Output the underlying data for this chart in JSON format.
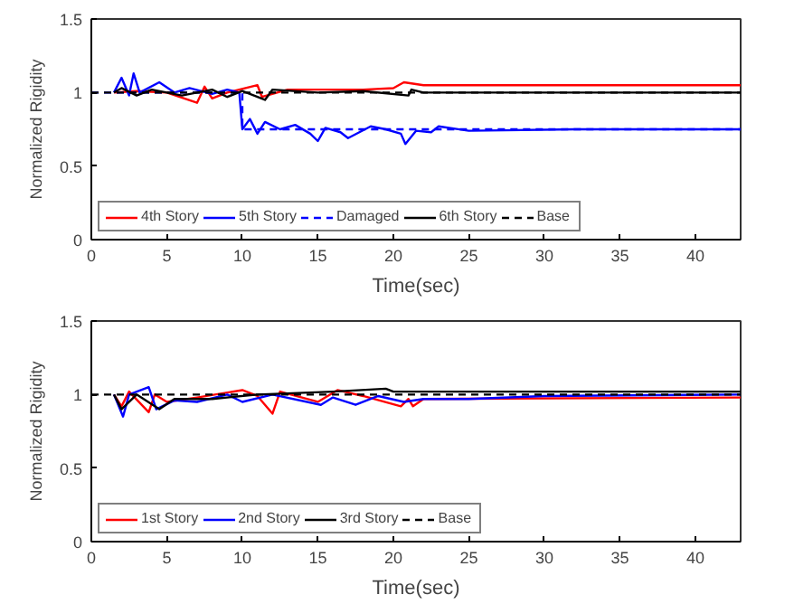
{
  "chart_data": [
    {
      "type": "line",
      "xlabel": "Time(sec)",
      "ylabel": "Normalized Rigidity",
      "xlim": [
        0,
        43
      ],
      "ylim": [
        0,
        1.5
      ],
      "xticks": [
        0,
        5,
        10,
        15,
        20,
        25,
        30,
        35,
        40
      ],
      "yticks": [
        0,
        0.5,
        1,
        1.5
      ],
      "grid": false,
      "legend": "bottom left",
      "series": [
        {
          "name": "4th Story",
          "color": "#ff0000",
          "line_style": "solid",
          "x": [
            1.5,
            3,
            5,
            7,
            7.5,
            8,
            9,
            11,
            11.3,
            13,
            18,
            20,
            20.7,
            22,
            43
          ],
          "values": [
            1,
            1.01,
            1.0,
            0.93,
            1.04,
            0.96,
            1.0,
            1.05,
            0.97,
            1.02,
            1.02,
            1.03,
            1.07,
            1.05,
            1.05
          ]
        },
        {
          "name": "5th Story",
          "color": "#0000ff",
          "line_style": "solid",
          "x": [
            1.5,
            2,
            2.5,
            2.8,
            3.2,
            4.5,
            5.5,
            6.5,
            8,
            9,
            9.8,
            10,
            10.5,
            11,
            11.5,
            12.5,
            13.5,
            14.5,
            15,
            15.5,
            16.5,
            17,
            18.5,
            19.5,
            20.5,
            20.8,
            21.5,
            22.5,
            23,
            25,
            32,
            43
          ],
          "values": [
            1,
            1.1,
            0.98,
            1.13,
            1.0,
            1.07,
            1.0,
            1.03,
            0.99,
            1.02,
            1.0,
            0.75,
            0.82,
            0.72,
            0.8,
            0.75,
            0.78,
            0.72,
            0.67,
            0.76,
            0.73,
            0.69,
            0.77,
            0.75,
            0.72,
            0.65,
            0.74,
            0.73,
            0.77,
            0.74,
            0.75,
            0.75
          ]
        },
        {
          "name": "Damaged",
          "color": "#0000ff",
          "line_style": "dashed",
          "x": [
            0,
            10,
            10,
            43
          ],
          "values": [
            1,
            1,
            0.75,
            0.75
          ]
        },
        {
          "name": "6th Story",
          "color": "#000000",
          "line_style": "solid",
          "x": [
            1.5,
            2,
            3,
            4,
            6,
            8,
            9,
            10,
            11.5,
            12,
            15,
            18,
            21,
            21.2,
            22,
            43
          ],
          "values": [
            1,
            1.03,
            0.98,
            1.02,
            0.98,
            1.02,
            0.97,
            1.01,
            0.95,
            1.02,
            1.0,
            1.01,
            0.98,
            1.02,
            1.0,
            1.0
          ]
        },
        {
          "name": "Base",
          "color": "#000000",
          "line_style": "dashed",
          "x": [
            0,
            43
          ],
          "values": [
            1,
            1
          ]
        }
      ]
    },
    {
      "type": "line",
      "xlabel": "Time(sec)",
      "ylabel": "Normalized Rigidity",
      "xlim": [
        0,
        43
      ],
      "ylim": [
        0,
        1.5
      ],
      "xticks": [
        0,
        5,
        10,
        15,
        20,
        25,
        30,
        35,
        40
      ],
      "yticks": [
        0,
        0.5,
        1,
        1.5
      ],
      "grid": false,
      "legend": "bottom left",
      "series": [
        {
          "name": "1st Story",
          "color": "#ff0000",
          "line_style": "solid",
          "x": [
            1.5,
            2,
            2.5,
            3.8,
            4.2,
            5,
            7,
            10,
            11,
            12,
            12.5,
            15,
            16.3,
            18,
            20.5,
            21,
            21.3,
            22,
            43
          ],
          "values": [
            1,
            0.92,
            1.02,
            0.88,
            1.0,
            0.95,
            0.98,
            1.03,
            0.99,
            0.87,
            1.02,
            0.95,
            1.03,
            0.99,
            0.92,
            0.97,
            0.92,
            0.97,
            0.98
          ]
        },
        {
          "name": "2nd Story",
          "color": "#0000ff",
          "line_style": "solid",
          "x": [
            1.5,
            2.1,
            2.5,
            3.8,
            4.3,
            5.5,
            7,
            9,
            10,
            12,
            15.2,
            16,
            17.5,
            19,
            20.7,
            22,
            25,
            30,
            43
          ],
          "values": [
            1,
            0.85,
            1.0,
            1.05,
            0.9,
            0.96,
            0.95,
            1.0,
            0.95,
            1.0,
            0.93,
            0.98,
            0.93,
            0.99,
            0.95,
            0.97,
            0.97,
            0.99,
            1.0
          ]
        },
        {
          "name": "3rd Story",
          "color": "#000000",
          "line_style": "solid",
          "x": [
            1.5,
            2,
            3,
            4.5,
            5.5,
            8,
            11,
            16,
            19.5,
            20,
            43
          ],
          "values": [
            1,
            0.9,
            1.0,
            0.9,
            0.97,
            0.97,
            1.0,
            1.02,
            1.04,
            1.02,
            1.02
          ]
        },
        {
          "name": "Base",
          "color": "#000000",
          "line_style": "dashed",
          "x": [
            0,
            43
          ],
          "values": [
            1,
            1
          ]
        }
      ]
    }
  ]
}
